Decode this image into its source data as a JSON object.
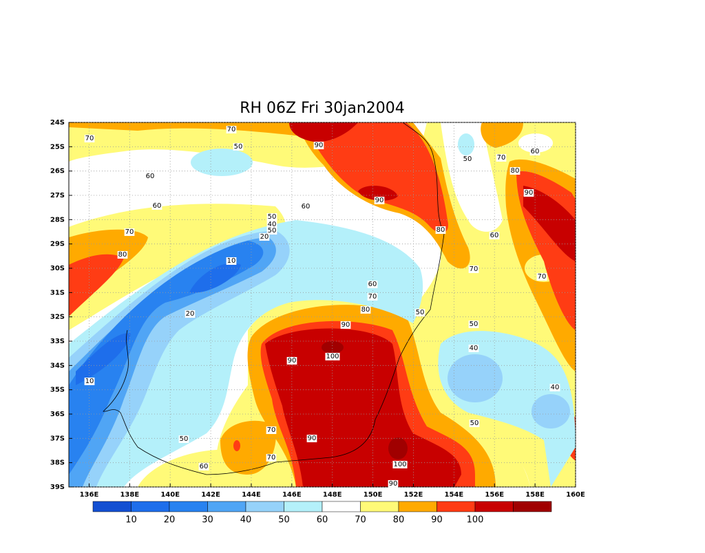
{
  "map": {
    "title": "RH 06Z Fri 30jan2004",
    "xlim": [
      135,
      160
    ],
    "ylim": [
      -39,
      -24
    ],
    "grid": true,
    "xticks": [
      {
        "value": 136,
        "label": "136E"
      },
      {
        "value": 138,
        "label": "138E"
      },
      {
        "value": 140,
        "label": "140E"
      },
      {
        "value": 142,
        "label": "142E"
      },
      {
        "value": 144,
        "label": "144E"
      },
      {
        "value": 146,
        "label": "146E"
      },
      {
        "value": 148,
        "label": "148E"
      },
      {
        "value": 150,
        "label": "150E"
      },
      {
        "value": 152,
        "label": "152E"
      },
      {
        "value": 154,
        "label": "154E"
      },
      {
        "value": 156,
        "label": "156E"
      },
      {
        "value": 158,
        "label": "158E"
      },
      {
        "value": 160,
        "label": "160E"
      }
    ],
    "yticks": [
      {
        "value": -24,
        "label": "24S"
      },
      {
        "value": -25,
        "label": "25S"
      },
      {
        "value": -26,
        "label": "26S"
      },
      {
        "value": -27,
        "label": "27S"
      },
      {
        "value": -28,
        "label": "28S"
      },
      {
        "value": -29,
        "label": "29S"
      },
      {
        "value": -30,
        "label": "30S"
      },
      {
        "value": -31,
        "label": "31S"
      },
      {
        "value": -32,
        "label": "32S"
      },
      {
        "value": -33,
        "label": "33S"
      },
      {
        "value": -34,
        "label": "34S"
      },
      {
        "value": -35,
        "label": "35S"
      },
      {
        "value": -36,
        "label": "36S"
      },
      {
        "value": -37,
        "label": "37S"
      },
      {
        "value": -38,
        "label": "38S"
      },
      {
        "value": -39,
        "label": "39S"
      }
    ],
    "colorbar": {
      "colors": [
        "#1450d2",
        "#1e6eeb",
        "#2882f0",
        "#50a5f5",
        "#96d2fa",
        "#b4f0fa",
        "#ffffff",
        "#fffa78",
        "#ffaa00",
        "#ff3c14",
        "#c80000",
        "#a00000"
      ],
      "labels": [
        10,
        20,
        30,
        40,
        50,
        60,
        70,
        80,
        90,
        100
      ]
    },
    "contour_labels": [
      70,
      70,
      50,
      90,
      60,
      60,
      90,
      50,
      70,
      60,
      80,
      90,
      50,
      60,
      40,
      50,
      20,
      70,
      80,
      60,
      80,
      10,
      70,
      70,
      60,
      70,
      20,
      80,
      50,
      90,
      50,
      40,
      100,
      90,
      10,
      40,
      50,
      70,
      90,
      50,
      70,
      100,
      60,
      90
    ]
  }
}
